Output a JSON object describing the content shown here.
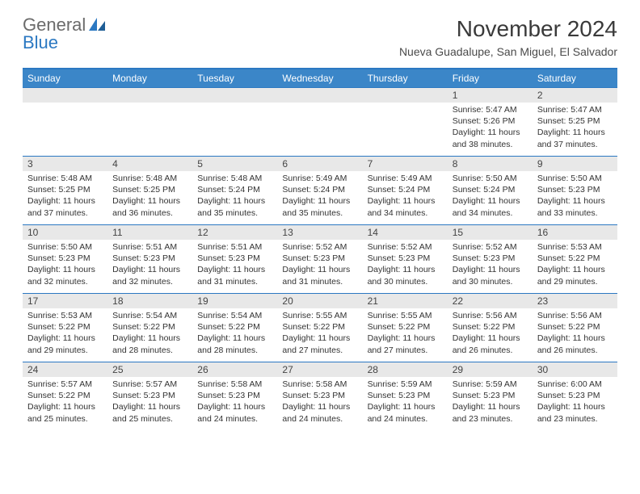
{
  "logo": {
    "top": "General",
    "bottom": "Blue"
  },
  "title": "November 2024",
  "subtitle": "Nueva Guadalupe, San Miguel, El Salvador",
  "colors": {
    "header_bg": "#3b86c8",
    "header_text": "#ffffff",
    "border": "#2b78c2",
    "daynum_bg": "#e8e8e8",
    "text": "#333333",
    "logo_gray": "#6b6b6b",
    "logo_blue": "#2b78c2"
  },
  "day_headers": [
    "Sunday",
    "Monday",
    "Tuesday",
    "Wednesday",
    "Thursday",
    "Friday",
    "Saturday"
  ],
  "weeks": [
    [
      {
        "n": "",
        "lines": []
      },
      {
        "n": "",
        "lines": []
      },
      {
        "n": "",
        "lines": []
      },
      {
        "n": "",
        "lines": []
      },
      {
        "n": "",
        "lines": []
      },
      {
        "n": "1",
        "lines": [
          "Sunrise: 5:47 AM",
          "Sunset: 5:26 PM",
          "Daylight: 11 hours and 38 minutes."
        ]
      },
      {
        "n": "2",
        "lines": [
          "Sunrise: 5:47 AM",
          "Sunset: 5:25 PM",
          "Daylight: 11 hours and 37 minutes."
        ]
      }
    ],
    [
      {
        "n": "3",
        "lines": [
          "Sunrise: 5:48 AM",
          "Sunset: 5:25 PM",
          "Daylight: 11 hours and 37 minutes."
        ]
      },
      {
        "n": "4",
        "lines": [
          "Sunrise: 5:48 AM",
          "Sunset: 5:25 PM",
          "Daylight: 11 hours and 36 minutes."
        ]
      },
      {
        "n": "5",
        "lines": [
          "Sunrise: 5:48 AM",
          "Sunset: 5:24 PM",
          "Daylight: 11 hours and 35 minutes."
        ]
      },
      {
        "n": "6",
        "lines": [
          "Sunrise: 5:49 AM",
          "Sunset: 5:24 PM",
          "Daylight: 11 hours and 35 minutes."
        ]
      },
      {
        "n": "7",
        "lines": [
          "Sunrise: 5:49 AM",
          "Sunset: 5:24 PM",
          "Daylight: 11 hours and 34 minutes."
        ]
      },
      {
        "n": "8",
        "lines": [
          "Sunrise: 5:50 AM",
          "Sunset: 5:24 PM",
          "Daylight: 11 hours and 34 minutes."
        ]
      },
      {
        "n": "9",
        "lines": [
          "Sunrise: 5:50 AM",
          "Sunset: 5:23 PM",
          "Daylight: 11 hours and 33 minutes."
        ]
      }
    ],
    [
      {
        "n": "10",
        "lines": [
          "Sunrise: 5:50 AM",
          "Sunset: 5:23 PM",
          "Daylight: 11 hours and 32 minutes."
        ]
      },
      {
        "n": "11",
        "lines": [
          "Sunrise: 5:51 AM",
          "Sunset: 5:23 PM",
          "Daylight: 11 hours and 32 minutes."
        ]
      },
      {
        "n": "12",
        "lines": [
          "Sunrise: 5:51 AM",
          "Sunset: 5:23 PM",
          "Daylight: 11 hours and 31 minutes."
        ]
      },
      {
        "n": "13",
        "lines": [
          "Sunrise: 5:52 AM",
          "Sunset: 5:23 PM",
          "Daylight: 11 hours and 31 minutes."
        ]
      },
      {
        "n": "14",
        "lines": [
          "Sunrise: 5:52 AM",
          "Sunset: 5:23 PM",
          "Daylight: 11 hours and 30 minutes."
        ]
      },
      {
        "n": "15",
        "lines": [
          "Sunrise: 5:52 AM",
          "Sunset: 5:23 PM",
          "Daylight: 11 hours and 30 minutes."
        ]
      },
      {
        "n": "16",
        "lines": [
          "Sunrise: 5:53 AM",
          "Sunset: 5:22 PM",
          "Daylight: 11 hours and 29 minutes."
        ]
      }
    ],
    [
      {
        "n": "17",
        "lines": [
          "Sunrise: 5:53 AM",
          "Sunset: 5:22 PM",
          "Daylight: 11 hours and 29 minutes."
        ]
      },
      {
        "n": "18",
        "lines": [
          "Sunrise: 5:54 AM",
          "Sunset: 5:22 PM",
          "Daylight: 11 hours and 28 minutes."
        ]
      },
      {
        "n": "19",
        "lines": [
          "Sunrise: 5:54 AM",
          "Sunset: 5:22 PM",
          "Daylight: 11 hours and 28 minutes."
        ]
      },
      {
        "n": "20",
        "lines": [
          "Sunrise: 5:55 AM",
          "Sunset: 5:22 PM",
          "Daylight: 11 hours and 27 minutes."
        ]
      },
      {
        "n": "21",
        "lines": [
          "Sunrise: 5:55 AM",
          "Sunset: 5:22 PM",
          "Daylight: 11 hours and 27 minutes."
        ]
      },
      {
        "n": "22",
        "lines": [
          "Sunrise: 5:56 AM",
          "Sunset: 5:22 PM",
          "Daylight: 11 hours and 26 minutes."
        ]
      },
      {
        "n": "23",
        "lines": [
          "Sunrise: 5:56 AM",
          "Sunset: 5:22 PM",
          "Daylight: 11 hours and 26 minutes."
        ]
      }
    ],
    [
      {
        "n": "24",
        "lines": [
          "Sunrise: 5:57 AM",
          "Sunset: 5:22 PM",
          "Daylight: 11 hours and 25 minutes."
        ]
      },
      {
        "n": "25",
        "lines": [
          "Sunrise: 5:57 AM",
          "Sunset: 5:23 PM",
          "Daylight: 11 hours and 25 minutes."
        ]
      },
      {
        "n": "26",
        "lines": [
          "Sunrise: 5:58 AM",
          "Sunset: 5:23 PM",
          "Daylight: 11 hours and 24 minutes."
        ]
      },
      {
        "n": "27",
        "lines": [
          "Sunrise: 5:58 AM",
          "Sunset: 5:23 PM",
          "Daylight: 11 hours and 24 minutes."
        ]
      },
      {
        "n": "28",
        "lines": [
          "Sunrise: 5:59 AM",
          "Sunset: 5:23 PM",
          "Daylight: 11 hours and 24 minutes."
        ]
      },
      {
        "n": "29",
        "lines": [
          "Sunrise: 5:59 AM",
          "Sunset: 5:23 PM",
          "Daylight: 11 hours and 23 minutes."
        ]
      },
      {
        "n": "30",
        "lines": [
          "Sunrise: 6:00 AM",
          "Sunset: 5:23 PM",
          "Daylight: 11 hours and 23 minutes."
        ]
      }
    ]
  ]
}
